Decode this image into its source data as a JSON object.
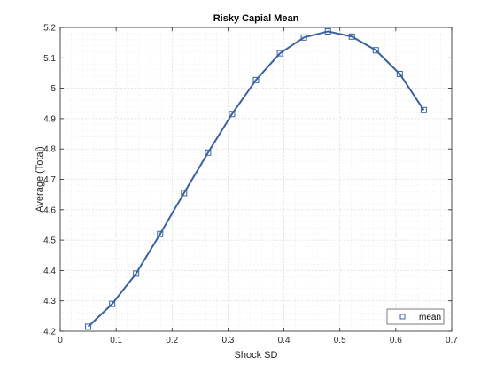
{
  "chart_data": {
    "type": "line",
    "title": "Risky Capial Mean",
    "xlabel": "Shock SD",
    "ylabel": "Average (Total)",
    "xlim": [
      0,
      0.7
    ],
    "ylim": [
      4.2,
      5.2
    ],
    "xticks": [
      0,
      0.1,
      0.2,
      0.3,
      0.4,
      0.5,
      0.6,
      0.7
    ],
    "xtick_labels": [
      "0",
      "0.1",
      "0.2",
      "0.3",
      "0.4",
      "0.5",
      "0.6",
      "0.7"
    ],
    "yticks": [
      4.2,
      4.3,
      4.4,
      4.5,
      4.6,
      4.7,
      4.8,
      4.9,
      5.0,
      5.1,
      5.2
    ],
    "ytick_labels": [
      "4.2",
      "4.3",
      "4.4",
      "4.5",
      "4.6",
      "4.7",
      "4.8",
      "4.9",
      "5",
      "5.1",
      "5.2"
    ],
    "grid": true,
    "minor_grid": true,
    "legend_position": "bottom-right",
    "series": [
      {
        "name": "mean",
        "color": "#3a62a0",
        "marker": "square",
        "x": [
          0.05,
          0.0929,
          0.1357,
          0.1786,
          0.2214,
          0.2643,
          0.3071,
          0.35,
          0.3929,
          0.4357,
          0.4786,
          0.5214,
          0.5643,
          0.6071,
          0.65
        ],
        "y": [
          4.215,
          4.29,
          4.39,
          4.52,
          4.655,
          4.788,
          4.915,
          5.027,
          5.115,
          5.167,
          5.187,
          5.17,
          5.125,
          5.047,
          4.928
        ]
      }
    ]
  }
}
